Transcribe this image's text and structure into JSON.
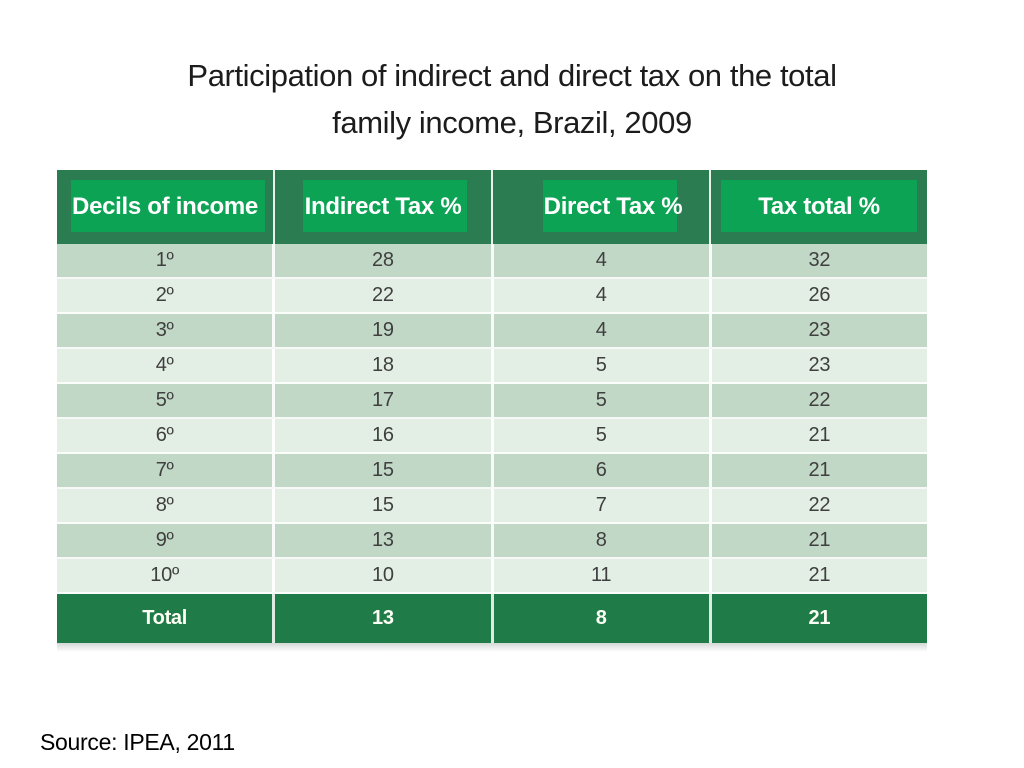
{
  "slide": {
    "title": "Participation of indirect and direct tax on the total\nfamily income, Brazil, 2009",
    "source": "Source: IPEA, 2011"
  },
  "table": {
    "columns": [
      "Decils of income",
      "Indirect Tax %",
      "Direct Tax %",
      "Tax total %"
    ],
    "rows": [
      {
        "decile": "1º",
        "indirect": "28",
        "direct": "4",
        "total": "32"
      },
      {
        "decile": "2º",
        "indirect": "22",
        "direct": "4",
        "total": "26"
      },
      {
        "decile": "3º",
        "indirect": "19",
        "direct": "4",
        "total": "23"
      },
      {
        "decile": "4º",
        "indirect": "18",
        "direct": "5",
        "total": "23"
      },
      {
        "decile": "5º",
        "indirect": "17",
        "direct": "5",
        "total": "22"
      },
      {
        "decile": "6º",
        "indirect": "16",
        "direct": "5",
        "total": "21"
      },
      {
        "decile": "7º",
        "indirect": "15",
        "direct": "6",
        "total": "21"
      },
      {
        "decile": "8º",
        "indirect": "15",
        "direct": "7",
        "total": "22"
      },
      {
        "decile": "9º",
        "indirect": "13",
        "direct": "8",
        "total": "21"
      },
      {
        "decile": "10º",
        "indirect": "10",
        "direct": "11",
        "total": "21"
      }
    ],
    "total_row": {
      "label": "Total",
      "indirect": "13",
      "direct": "8",
      "total": "21"
    }
  },
  "chart_data": {
    "type": "table",
    "title": "Participation of indirect and direct tax on the total family income, Brazil, 2009",
    "categories": [
      "1º",
      "2º",
      "3º",
      "4º",
      "5º",
      "6º",
      "7º",
      "8º",
      "9º",
      "10º",
      "Total"
    ],
    "series": [
      {
        "name": "Indirect Tax %",
        "values": [
          28,
          22,
          19,
          18,
          17,
          16,
          15,
          15,
          13,
          10,
          13
        ]
      },
      {
        "name": "Direct Tax %",
        "values": [
          4,
          4,
          4,
          5,
          5,
          5,
          6,
          7,
          8,
          11,
          8
        ]
      },
      {
        "name": "Tax total %",
        "values": [
          32,
          26,
          23,
          23,
          22,
          21,
          21,
          22,
          21,
          21,
          21
        ]
      }
    ]
  },
  "colors": {
    "header-band-green": "#2b7d51",
    "header-box-green": "#0da355",
    "total-row-green": "#1f7b47",
    "stripe-dark": "#c2d8c6",
    "stripe-light": "#e3efe4",
    "header-text": "#ffffff",
    "body-text": "#3f3f3f",
    "title-text": "#1c1c1c"
  }
}
